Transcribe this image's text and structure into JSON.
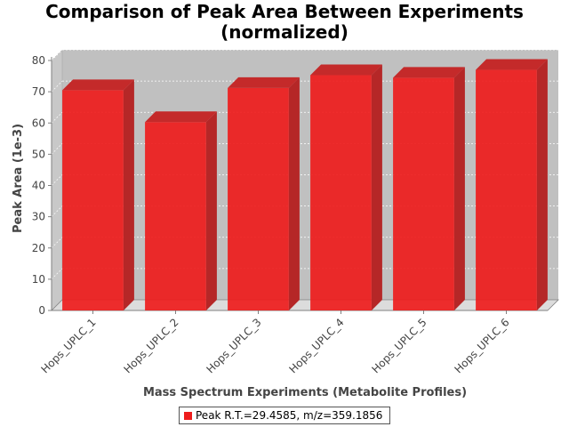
{
  "chart_data": {
    "type": "bar",
    "title_lines": [
      "Comparison of Peak Area Between Experiments",
      "(normalized)"
    ],
    "xlabel": "Mass Spectrum Experiments (Metabolite Profiles)",
    "ylabel": "Peak Area (1e-3)",
    "categories": [
      "Hops_UPLC_1",
      "Hops_UPLC_2",
      "Hops_UPLC_3",
      "Hops_UPLC_4",
      "Hops_UPLC_5",
      "Hops_UPLC_6"
    ],
    "series": [
      {
        "name": "Peak R.T.=29.4585, m/z=359.1856",
        "color": "#ee1c1c",
        "values": [
          70.5,
          60.3,
          71.2,
          75.3,
          74.5,
          77.0
        ]
      }
    ],
    "ylim": [
      0,
      80
    ],
    "yticks": [
      0,
      10,
      20,
      30,
      40,
      50,
      60,
      70,
      80
    ],
    "grid": true,
    "legend_position": "bottom",
    "style": "3d-bar"
  }
}
